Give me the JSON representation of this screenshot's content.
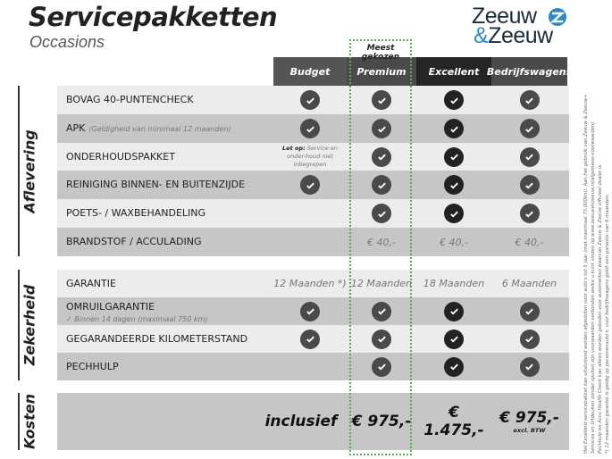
{
  "header": {
    "title": "Servicepakketten",
    "subtitle": "Occasions",
    "logo": {
      "line1": "Zeeuw",
      "line2_amp": "&",
      "line2": "Zeeuw"
    },
    "popular_label": "Meest gekozen"
  },
  "columns": [
    {
      "label": "Budget",
      "color": "#555555"
    },
    {
      "label": "Premium",
      "color": "#4a4a4a"
    },
    {
      "label": "Excellent",
      "color": "#262626"
    },
    {
      "label": "Bedrijfswagens",
      "color": "#4a4a4a"
    }
  ],
  "sections": [
    {
      "title": "Aflevering",
      "rows": [
        {
          "label": "BOVAG 40-PUNTENCHECK",
          "cells": [
            "check",
            "check",
            "check",
            "check"
          ]
        },
        {
          "label": "APK",
          "note": "(Geldigheid van minimaal 12 maanden)",
          "cells": [
            "check",
            "check",
            "check",
            "check"
          ]
        },
        {
          "label": "ONDERHOUDSPAKKET",
          "letop": {
            "bold": "Let op:",
            "text": "Service en onder-houd niet inbegrepen"
          },
          "cells": [
            "",
            "check",
            "check",
            "check"
          ]
        },
        {
          "label": "REINIGING BINNEN- EN BUITENZIJDE",
          "cells": [
            "check",
            "check",
            "check",
            "check"
          ]
        },
        {
          "label": "POETS- / WAXBEHANDELING",
          "cells": [
            "",
            "check",
            "check",
            "check"
          ]
        },
        {
          "label": "BRANDSTOF / ACCULADING",
          "cells": [
            "",
            "€ 40,-",
            "€ 40,-",
            "€ 40,-"
          ]
        }
      ]
    },
    {
      "title": "Zekerheid",
      "rows": [
        {
          "label": "GARANTIE",
          "cells": [
            "12 Maanden *)",
            "12 Maanden",
            "18 Maanden",
            "6 Maanden"
          ]
        },
        {
          "label": "OMRUILGARANTIE",
          "sub": "✓  Binnen 14 dagen (maximaal 750 km)",
          "cells": [
            "check",
            "check",
            "check",
            "check"
          ]
        },
        {
          "label": "GEGARANDEERDE KILOMETERSTAND",
          "cells": [
            "check",
            "check",
            "check",
            "check"
          ]
        },
        {
          "label": "PECHHULP",
          "cells": [
            "",
            "check",
            "check",
            "check"
          ]
        }
      ]
    },
    {
      "title": "Kosten",
      "prices": [
        "inclusief",
        "€ 975,-",
        "€ 1.475,-",
        "€ 975,-"
      ],
      "price_note": "excl. BTW"
    }
  ],
  "footnotes": [
    "Het Excellent-servicepakket kan uitsluitend worden afgesloten voor auto's tot 5 jaar (met maximaal 75.000km). Aan het gebruik van Zeeuw & Zeeuw+",
    "Services en Uitdeuken zonder spuiten zijn voorwaarden verbonden welke u kunt vinden op www.zeeuwenzeeuw.nl/algemene-voorwaarden/.",
    "Pechhulp en Accu Health Check kan alleen worden geboden voor automerken waarvan Zeeuw & Zeeuw officieel dealer is.",
    "*) 12 maanden garantie is geldig op personenauto's, voor bedrijfswagens geldt een garantie van 6 maanden."
  ]
}
